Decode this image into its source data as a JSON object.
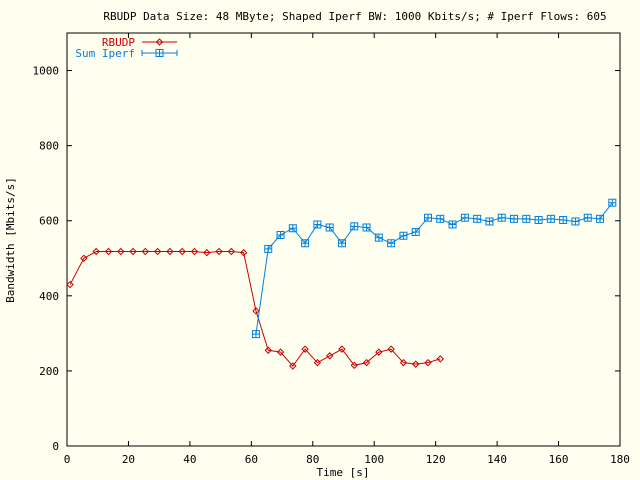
{
  "chart_data": {
    "type": "line",
    "title": "RBUDP Data Size: 48 MByte; Shaped Iperf BW: 1000 Kbits/s; # Iperf Flows: 605",
    "xlabel": "Time [s]",
    "ylabel": "Bandwidth [Mbits/s]",
    "xlim": [
      0,
      180
    ],
    "ylim": [
      0,
      1100
    ],
    "xticks": [
      0,
      20,
      40,
      60,
      80,
      100,
      120,
      140,
      160,
      180
    ],
    "yticks": [
      0,
      200,
      400,
      600,
      800,
      1000
    ],
    "grid": false,
    "legend_position": "top-left",
    "series": [
      {
        "name": "RBUDP",
        "color": "#cc0000",
        "marker": "diamond",
        "x": [
          1,
          5.5,
          9.5,
          13.5,
          17.5,
          21.5,
          25.5,
          29.5,
          33.5,
          37.5,
          41.5,
          45.5,
          49.5,
          53.5,
          57.5,
          61.5,
          65.5,
          69.5,
          73.5,
          77.5,
          81.5,
          85.5,
          89.5,
          93.5,
          97.5,
          101.5,
          105.5,
          109.5,
          113.5,
          117.5,
          121.5
        ],
        "y": [
          430,
          500,
          518,
          518,
          518,
          518,
          518,
          518,
          518,
          518,
          518,
          515,
          518,
          518,
          515,
          360,
          255,
          250,
          213,
          258,
          222,
          240,
          258,
          215,
          222,
          250,
          258,
          222,
          218,
          222,
          232
        ]
      },
      {
        "name": "Sum Iperf",
        "color": "#0080e0",
        "marker": "boxed-plus",
        "x": [
          61.5,
          65.5,
          69.5,
          73.5,
          77.5,
          81.5,
          85.5,
          89.5,
          93.5,
          97.5,
          101.5,
          105.5,
          109.5,
          113.5,
          117.5,
          121.5,
          125.5,
          129.5,
          133.5,
          137.5,
          141.5,
          145.5,
          149.5,
          153.5,
          157.5,
          161.5,
          165.5,
          169.5,
          173.5,
          177.5
        ],
        "y": [
          298,
          525,
          562,
          580,
          540,
          590,
          582,
          540,
          585,
          582,
          555,
          540,
          560,
          570,
          608,
          605,
          590,
          608,
          605,
          598,
          608,
          605,
          605,
          602,
          605,
          602,
          598,
          608,
          605,
          648
        ]
      }
    ]
  }
}
